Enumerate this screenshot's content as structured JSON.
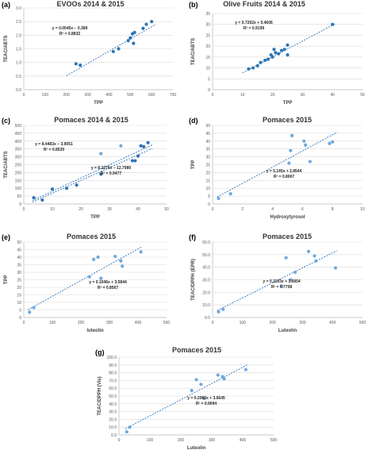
{
  "figure": {
    "panels": [
      {
        "letter": "(a)",
        "title": "EVOOs 2014 & 2015",
        "xlabel": "TPP",
        "ylabel": "TEAC/ABTS",
        "xticks": [
          "0",
          "100",
          "200",
          "300",
          "400",
          "500",
          "600",
          "700"
        ],
        "yticks": [
          "0.0",
          "0.5",
          "1.0",
          "1.5",
          "2.0",
          "2.5",
          "3.0"
        ],
        "annotations": [
          {
            "lines": [
              "y = 0.0045x − 0.389",
              "R² = 0.8832"
            ]
          }
        ]
      },
      {
        "letter": "(b)",
        "title": "Olive Fruits 2014 & 2015",
        "xlabel": "TPP",
        "ylabel": "TEAC/ABTS",
        "xticks": [
          "0",
          "10",
          "20",
          "30",
          "40",
          "50"
        ],
        "yticks": [
          "0",
          "5",
          "10",
          "15",
          "20",
          "25",
          "30",
          "35"
        ],
        "annotations": [
          {
            "lines": [
              "y = 0.7292x + 0.4606",
              "R² = 0.9199"
            ]
          }
        ]
      },
      {
        "letter": "(c)",
        "title": "Pomaces 2014 & 2015",
        "xlabel": "TPP",
        "ylabel": "TEAC/ABTS",
        "xticks": [
          "0",
          "10",
          "20",
          "30",
          "40",
          "50"
        ],
        "yticks": [
          "0",
          "50",
          "100",
          "150",
          "200",
          "250",
          "300",
          "350",
          "400",
          "450",
          "500"
        ],
        "annotations": [
          {
            "lines": [
              "y = 8.4483x − 3.9051",
              "R² = 0.8530"
            ]
          },
          {
            "lines": [
              "y = 8.1276x − 12.7980",
              "R² = 0.9477"
            ]
          }
        ]
      },
      {
        "letter": "(d)",
        "title": "Pomaces 2015",
        "xlabel": "Hydroxytyrosol",
        "ylabel": "TPP",
        "xticks": [
          "0",
          "2",
          "4",
          "6",
          "8",
          "10"
        ],
        "yticks": [
          "0",
          "5",
          "10",
          "15",
          "20",
          "25",
          "30",
          "35",
          "40",
          "45",
          "50"
        ],
        "annotations": [
          {
            "lines": [
              "y = 5.145x + 2.8544",
              "R² = 0.8067"
            ]
          }
        ]
      },
      {
        "letter": "(e)",
        "title": "Pomaces 2015",
        "xlabel": "luteolin",
        "ylabel": "TPP",
        "xticks": [
          "0",
          "100",
          "200",
          "300",
          "400",
          "500"
        ],
        "yticks": [
          "0",
          "5",
          "10",
          "15",
          "20",
          "25",
          "30",
          "35",
          "40",
          "45",
          "50"
        ],
        "annotations": [
          {
            "lines": [
              "y = 0.1046x + 3.5844",
              "R² = 0.8567"
            ]
          }
        ]
      },
      {
        "letter": "(f)",
        "title": "Pomaces 2015",
        "xlabel": "Luteolin",
        "ylabel": "TEAC/DPPH (EPR)",
        "xticks": [
          "0",
          "100",
          "200",
          "300",
          "400",
          "500"
        ],
        "yticks": [
          "0.0",
          "10.0",
          "20.0",
          "30.0",
          "40.0",
          "50.0",
          "60.0"
        ],
        "annotations": [
          {
            "lines": [
              "y = 0.1193x + 3.6854",
              "R² = 0.7708"
            ]
          }
        ]
      },
      {
        "letter": "(g)",
        "title": "Pomaces 2015",
        "xlabel": "Luteolin",
        "ylabel": "TEAC/DPPH (Vis)",
        "xticks": [
          "0",
          "100",
          "200",
          "300",
          "400",
          "500"
        ],
        "yticks": [
          "0.0",
          "10.0",
          "20.0",
          "30.0",
          "40.0",
          "50.0",
          "60.0",
          "70.0",
          "80.0",
          "90.0",
          "100.0"
        ],
        "annotations": [
          {
            "lines": [
              "y = 0.2082x + 3.6645",
              "R² = 0.9094"
            ]
          }
        ]
      }
    ]
  },
  "chart_data": [
    {
      "type": "scatter",
      "xlim": [
        0,
        700
      ],
      "ylim": [
        0,
        3
      ],
      "grid": true,
      "legend": "none",
      "series": [
        {
          "color": "#2e75b6",
          "x": [
            245,
            265,
            420,
            445,
            490,
            500,
            510,
            515,
            520,
            560,
            575,
            600
          ],
          "y": [
            0.95,
            0.9,
            1.4,
            1.5,
            1.8,
            1.9,
            2.05,
            1.7,
            2.1,
            2.25,
            2.4,
            2.5
          ]
        }
      ],
      "trendlines": [
        {
          "slope": 0.0045,
          "intercept": -0.389,
          "x": [
            200,
            620
          ]
        }
      ]
    },
    {
      "type": "scatter",
      "xlim": [
        0,
        50
      ],
      "ylim": [
        0,
        35
      ],
      "grid": true,
      "legend": "none",
      "series": [
        {
          "color": "#2e75b6",
          "x": [
            12,
            13.5,
            15,
            16,
            17.5,
            18.5,
            19.5,
            20,
            20.5,
            21,
            22,
            23,
            24,
            25,
            25,
            40
          ],
          "y": [
            9.5,
            10,
            11,
            12.5,
            13.5,
            14,
            16,
            15,
            18.5,
            17,
            16.5,
            18,
            18.5,
            20.5,
            16,
            30
          ]
        }
      ],
      "trendlines": [
        {
          "slope": 0.7292,
          "intercept": 0.4606,
          "x": [
            10,
            41
          ]
        }
      ]
    },
    {
      "type": "scatter",
      "xlim": [
        0,
        50
      ],
      "ylim": [
        0,
        500
      ],
      "grid": true,
      "legend": "none",
      "series": [
        {
          "color": "#6fa8dc",
          "x": [
            27,
            34
          ],
          "y": [
            320,
            370
          ]
        },
        {
          "color": "#2e75b6",
          "x": [
            3.5,
            6.5,
            10,
            15,
            18.5,
            27,
            38,
            39,
            40,
            41,
            42,
            43.5
          ],
          "y": [
            40,
            25,
            95,
            100,
            120,
            190,
            275,
            275,
            305,
            370,
            365,
            390
          ]
        }
      ],
      "trendlines": [
        {
          "slope": 8.4483,
          "intercept": -3.9051,
          "x": [
            3,
            45
          ]
        },
        {
          "slope": 8.1276,
          "intercept": -12.798,
          "x": [
            3,
            45
          ]
        }
      ]
    },
    {
      "type": "scatter",
      "xlim": [
        0,
        10
      ],
      "ylim": [
        0,
        50
      ],
      "grid": true,
      "legend": "none",
      "series": [
        {
          "color": "#6fa8dc",
          "x": [
            0.4,
            1.2,
            5.1,
            5.2,
            5.3,
            6.1,
            6.2,
            6.5,
            7.8,
            8.0
          ],
          "y": [
            3.5,
            6.5,
            26,
            34,
            43.5,
            40,
            37.5,
            27,
            38.5,
            39.5
          ]
        }
      ],
      "trendlines": [
        {
          "slope": 5.145,
          "intercept": 2.8544,
          "x": [
            0.3,
            8.3
          ]
        }
      ]
    },
    {
      "type": "scatter",
      "xlim": [
        0,
        500
      ],
      "ylim": [
        0,
        50
      ],
      "grid": true,
      "legend": "none",
      "series": [
        {
          "color": "#6fa8dc",
          "x": [
            20,
            35,
            230,
            245,
            260,
            270,
            320,
            340,
            345,
            410
          ],
          "y": [
            3.5,
            6.5,
            27,
            38.5,
            40,
            26,
            40.5,
            37.5,
            34,
            43.5
          ]
        }
      ],
      "trendlines": [
        {
          "slope": 0.1046,
          "intercept": 3.5844,
          "x": [
            15,
            415
          ]
        }
      ]
    },
    {
      "type": "scatter",
      "xlim": [
        0,
        500
      ],
      "ylim": [
        0,
        60
      ],
      "grid": true,
      "legend": "none",
      "series": [
        {
          "color": "#6fa8dc",
          "x": [
            20,
            35,
            230,
            245,
            260,
            275,
            320,
            340,
            345,
            410
          ],
          "y": [
            4.5,
            6.5,
            25,
            47.5,
            30,
            36,
            52.5,
            49,
            45,
            39.5
          ]
        }
      ],
      "trendlines": [
        {
          "slope": 0.1193,
          "intercept": 3.6854,
          "x": [
            15,
            415
          ]
        }
      ]
    },
    {
      "type": "scatter",
      "xlim": [
        0,
        500
      ],
      "ylim": [
        0,
        100
      ],
      "grid": true,
      "legend": "none",
      "series": [
        {
          "color": "#6fa8dc",
          "x": [
            25,
            35,
            235,
            250,
            265,
            275,
            320,
            335,
            340,
            410
          ],
          "y": [
            4,
            10,
            57,
            71,
            65,
            47,
            77,
            75,
            72,
            84
          ]
        }
      ],
      "trendlines": [
        {
          "slope": 0.2082,
          "intercept": 3.6645,
          "x": [
            20,
            415
          ]
        }
      ]
    }
  ]
}
